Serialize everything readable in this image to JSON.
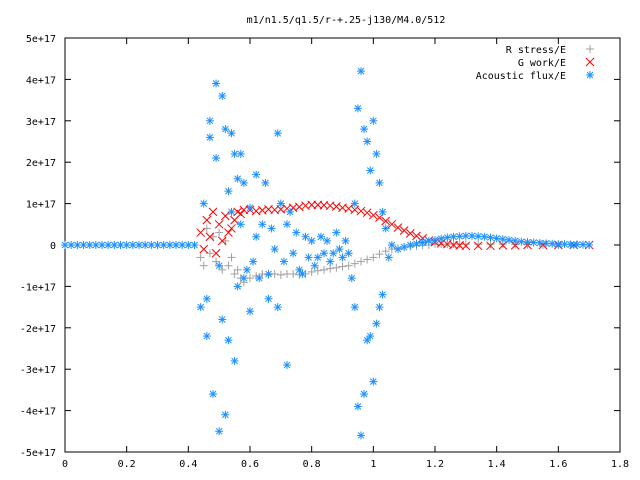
{
  "chart_data": {
    "type": "scatter",
    "title": "m1/n1.5/q1.5/r-+.25-j130/M4.0/512",
    "xlabel": "",
    "ylabel": "",
    "xlim": [
      0,
      1.8
    ],
    "ylim": [
      -5e+17,
      5e+17
    ],
    "x_ticks": [
      0,
      0.2,
      0.4,
      0.6,
      0.8,
      1,
      1.2,
      1.4,
      1.6,
      1.8
    ],
    "x_tick_labels": [
      "0",
      "0.2",
      "0.4",
      "0.6",
      "0.8",
      "1",
      "1.2",
      "1.4",
      "1.6",
      "1.8"
    ],
    "y_ticks": [
      -5e+17,
      -4e+17,
      -3e+17,
      -2e+17,
      -1e+17,
      0,
      1e+17,
      2e+17,
      3e+17,
      4e+17,
      5e+17
    ],
    "y_tick_labels": [
      "-5e+17",
      "-4e+17",
      "-3e+17",
      "-2e+17",
      "-1e+17",
      "0",
      "1e+17",
      "2e+17",
      "3e+17",
      "4e+17",
      "5e+17"
    ],
    "grid": false,
    "legend_position": "top-right",
    "series": [
      {
        "name": "R stress/E",
        "marker": "plus",
        "color": "#a0a0a0",
        "points": [
          [
            0.44,
            -3e+16
          ],
          [
            0.45,
            -5e+16
          ],
          [
            0.46,
            4e+16
          ],
          [
            0.47,
            -2e+16
          ],
          [
            0.48,
            2e+16
          ],
          [
            0.49,
            -4e+16
          ],
          [
            0.5,
            3e+16
          ],
          [
            0.51,
            -6e+16
          ],
          [
            0.52,
            1e+16
          ],
          [
            0.53,
            -5e+16
          ],
          [
            0.54,
            -3e+16
          ],
          [
            0.55,
            -7e+16
          ],
          [
            0.56,
            -6e+16
          ],
          [
            0.57,
            -8e+16
          ],
          [
            0.58,
            -9e+16
          ],
          [
            0.6,
            -8e+16
          ],
          [
            0.62,
            -7.5e+16
          ],
          [
            0.64,
            -7e+16
          ],
          [
            0.66,
            -7.2e+16
          ],
          [
            0.68,
            -7e+16
          ],
          [
            0.7,
            -7.2e+16
          ],
          [
            0.72,
            -7e+16
          ],
          [
            0.74,
            -7e+16
          ],
          [
            0.76,
            -7.2e+16
          ],
          [
            0.78,
            -7e+16
          ],
          [
            0.8,
            -6.5e+16
          ],
          [
            0.82,
            -6.2e+16
          ],
          [
            0.84,
            -6e+16
          ],
          [
            0.86,
            -5.7e+16
          ],
          [
            0.88,
            -5.5e+16
          ],
          [
            0.9,
            -5.2e+16
          ],
          [
            0.92,
            -5e+16
          ],
          [
            0.94,
            -4.5e+16
          ],
          [
            0.96,
            -4e+16
          ],
          [
            0.98,
            -3.5e+16
          ],
          [
            1.0,
            -3e+16
          ],
          [
            1.02,
            -2.2e+16
          ],
          [
            1.04,
            -1.5e+16
          ],
          [
            1.06,
            -1e+16
          ],
          [
            1.08,
            -8000000000000000.0
          ],
          [
            1.1,
            -5000000000000000.0
          ],
          [
            1.12,
            -4000000000000000.0
          ],
          [
            1.14,
            -2000000000000000.0
          ],
          [
            1.16,
            -1000000000000000.0
          ],
          [
            1.18,
            0.0
          ],
          [
            1.2,
            2000000000000000.0
          ],
          [
            1.22,
            2000000000000000.0
          ],
          [
            1.24,
            2000000000000000.0
          ],
          [
            1.26,
            2000000000000000.0
          ],
          [
            1.28,
            2000000000000000.0
          ],
          [
            1.3,
            2000000000000000.0
          ],
          [
            1.34,
            2000000000000000.0
          ],
          [
            1.38,
            2000000000000000.0
          ],
          [
            1.42,
            2000000000000000.0
          ],
          [
            1.46,
            1000000000000000.0
          ],
          [
            1.5,
            1000000000000000.0
          ],
          [
            1.55,
            0.0
          ],
          [
            1.6,
            0.0
          ],
          [
            1.65,
            0.0
          ],
          [
            1.7,
            0.0
          ]
        ]
      },
      {
        "name": "G work/E",
        "marker": "cross",
        "color": "#ff0000",
        "points": [
          [
            0.44,
            3e+16
          ],
          [
            0.45,
            -1e+16
          ],
          [
            0.46,
            6e+16
          ],
          [
            0.47,
            2e+16
          ],
          [
            0.48,
            8e+16
          ],
          [
            0.49,
            -2e+16
          ],
          [
            0.5,
            5e+16
          ],
          [
            0.51,
            1e+16
          ],
          [
            0.52,
            7e+16
          ],
          [
            0.53,
            3e+16
          ],
          [
            0.54,
            4e+16
          ],
          [
            0.55,
            6e+16
          ],
          [
            0.56,
            8e+16
          ],
          [
            0.57,
            7.5e+16
          ],
          [
            0.58,
            8.5e+16
          ],
          [
            0.6,
            8.5e+16
          ],
          [
            0.62,
            8.2e+16
          ],
          [
            0.64,
            8.4e+16
          ],
          [
            0.66,
            8.6e+16
          ],
          [
            0.68,
            8.5e+16
          ],
          [
            0.7,
            8.6e+16
          ],
          [
            0.72,
            8.8e+16
          ],
          [
            0.74,
            9e+16
          ],
          [
            0.76,
            9.2e+16
          ],
          [
            0.78,
            9.5e+16
          ],
          [
            0.8,
            9.7e+16
          ],
          [
            0.82,
            9.7e+16
          ],
          [
            0.84,
            9.6e+16
          ],
          [
            0.86,
            9.5e+16
          ],
          [
            0.88,
            9.3e+16
          ],
          [
            0.9,
            9e+16
          ],
          [
            0.92,
            8.8e+16
          ],
          [
            0.94,
            8.5e+16
          ],
          [
            0.96,
            8.2e+16
          ],
          [
            0.98,
            7.8e+16
          ],
          [
            1.0,
            7.2e+16
          ],
          [
            1.02,
            6.6e+16
          ],
          [
            1.04,
            5.8e+16
          ],
          [
            1.06,
            5e+16
          ],
          [
            1.08,
            4.2e+16
          ],
          [
            1.1,
            3.5e+16
          ],
          [
            1.12,
            2.8e+16
          ],
          [
            1.14,
            2.2e+16
          ],
          [
            1.16,
            1.6e+16
          ],
          [
            1.18,
            1.1e+16
          ],
          [
            1.2,
            7000000000000000.0
          ],
          [
            1.22,
            4000000000000000.0
          ],
          [
            1.24,
            2000000000000000.0
          ],
          [
            1.26,
            0.0
          ],
          [
            1.28,
            -1000000000000000.0
          ],
          [
            1.3,
            -2000000000000000.0
          ],
          [
            1.34,
            -2000000000000000.0
          ],
          [
            1.38,
            -2000000000000000.0
          ],
          [
            1.42,
            -1000000000000000.0
          ],
          [
            1.46,
            -1000000000000000.0
          ],
          [
            1.5,
            0.0
          ],
          [
            1.55,
            0.0
          ],
          [
            1.6,
            0.0
          ],
          [
            1.65,
            0.0
          ],
          [
            1.7,
            0.0
          ]
        ]
      },
      {
        "name": "Acoustic flux/E",
        "marker": "star",
        "color": "#1e90ff",
        "points": [
          [
            0.0,
            0.0
          ],
          [
            0.02,
            0.0
          ],
          [
            0.04,
            0.0
          ],
          [
            0.06,
            0.0
          ],
          [
            0.08,
            0.0
          ],
          [
            0.1,
            0.0
          ],
          [
            0.12,
            0.0
          ],
          [
            0.14,
            0.0
          ],
          [
            0.16,
            0.0
          ],
          [
            0.18,
            0.0
          ],
          [
            0.2,
            0.0
          ],
          [
            0.22,
            0.0
          ],
          [
            0.24,
            0.0
          ],
          [
            0.26,
            0.0
          ],
          [
            0.28,
            0.0
          ],
          [
            0.3,
            0.0
          ],
          [
            0.32,
            0.0
          ],
          [
            0.34,
            0.0
          ],
          [
            0.36,
            0.0
          ],
          [
            0.38,
            0.0
          ],
          [
            0.4,
            0.0
          ],
          [
            0.42,
            0.0
          ],
          [
            0.44,
            -1.5e+17
          ],
          [
            0.45,
            1e+17
          ],
          [
            0.46,
            -1.3e+17
          ],
          [
            0.46,
            -2.2e+17
          ],
          [
            0.47,
            2.6e+17
          ],
          [
            0.47,
            3e+17
          ],
          [
            0.48,
            -3.6e+17
          ],
          [
            0.49,
            3.9e+17
          ],
          [
            0.49,
            2.1e+17
          ],
          [
            0.5,
            -5e+16
          ],
          [
            0.5,
            -4.5e+17
          ],
          [
            0.51,
            3.6e+17
          ],
          [
            0.51,
            -1.8e+17
          ],
          [
            0.52,
            2.8e+17
          ],
          [
            0.52,
            -4.1e+17
          ],
          [
            0.53,
            1.3e+17
          ],
          [
            0.53,
            -2.3e+17
          ],
          [
            0.54,
            2.7e+17
          ],
          [
            0.54,
            8e+16
          ],
          [
            0.55,
            2.2e+17
          ],
          [
            0.55,
            -2.8e+17
          ],
          [
            0.56,
            1.6e+17
          ],
          [
            0.56,
            -1e+17
          ],
          [
            0.57,
            2.2e+17
          ],
          [
            0.57,
            5e+16
          ],
          [
            0.58,
            1.5e+17
          ],
          [
            0.58,
            -8e+16
          ],
          [
            0.59,
            -6e+16
          ],
          [
            0.6,
            9e+16
          ],
          [
            0.6,
            -1.6e+17
          ],
          [
            0.61,
            -4e+16
          ],
          [
            0.62,
            1.7e+17
          ],
          [
            0.62,
            2e+16
          ],
          [
            0.63,
            -8e+16
          ],
          [
            0.64,
            5e+16
          ],
          [
            0.65,
            1.5e+17
          ],
          [
            0.66,
            -1.3e+17
          ],
          [
            0.66,
            -7e+16
          ],
          [
            0.67,
            4e+16
          ],
          [
            0.68,
            -1e+16
          ],
          [
            0.69,
            2.7e+17
          ],
          [
            0.69,
            -1.5e+17
          ],
          [
            0.7,
            1e+17
          ],
          [
            0.71,
            -4e+16
          ],
          [
            0.72,
            5e+16
          ],
          [
            0.72,
            -2.9e+17
          ],
          [
            0.73,
            8e+16
          ],
          [
            0.74,
            -2e+16
          ],
          [
            0.75,
            3e+16
          ],
          [
            0.76,
            -6e+16
          ],
          [
            0.77,
            -7e+16
          ],
          [
            0.78,
            2e+16
          ],
          [
            0.79,
            -3e+16
          ],
          [
            0.8,
            1e+16
          ],
          [
            0.81,
            -5e+16
          ],
          [
            0.82,
            -3e+16
          ],
          [
            0.83,
            2e+16
          ],
          [
            0.84,
            -2e+16
          ],
          [
            0.85,
            1e+16
          ],
          [
            0.86,
            -4e+16
          ],
          [
            0.87,
            -2e+16
          ],
          [
            0.88,
            3e+16
          ],
          [
            0.89,
            -1e+16
          ],
          [
            0.9,
            -3e+16
          ],
          [
            0.91,
            1e+16
          ],
          [
            0.92,
            -2e+16
          ],
          [
            0.93,
            -8e+16
          ],
          [
            0.94,
            1e+17
          ],
          [
            0.94,
            -1.5e+17
          ],
          [
            0.95,
            3.3e+17
          ],
          [
            0.95,
            -3.9e+17
          ],
          [
            0.96,
            4.2e+17
          ],
          [
            0.96,
            -4.6e+17
          ],
          [
            0.97,
            2.8e+17
          ],
          [
            0.97,
            -3.6e+17
          ],
          [
            0.98,
            2.5e+17
          ],
          [
            0.98,
            -2.3e+17
          ],
          [
            0.99,
            1.8e+17
          ],
          [
            0.99,
            -2.2e+17
          ],
          [
            1.0,
            3e+17
          ],
          [
            1.0,
            -3.3e+17
          ],
          [
            1.01,
            2.2e+17
          ],
          [
            1.01,
            -1.9e+17
          ],
          [
            1.02,
            1.5e+17
          ],
          [
            1.02,
            -1.5e+17
          ],
          [
            1.03,
            8e+16
          ],
          [
            1.03,
            -1.2e+17
          ],
          [
            1.04,
            4e+16
          ],
          [
            1.05,
            -3e+16
          ],
          [
            1.06,
            0.0
          ],
          [
            1.08,
            -1e+16
          ],
          [
            1.1,
            -5000000000000000.0
          ],
          [
            1.12,
            0.0
          ],
          [
            1.14,
            3000000000000000.0
          ],
          [
            1.16,
            6000000000000000.0
          ],
          [
            1.18,
            1e+16
          ],
          [
            1.2,
            1.2e+16
          ],
          [
            1.22,
            1.5e+16
          ],
          [
            1.24,
            1.8e+16
          ],
          [
            1.26,
            2e+16
          ],
          [
            1.28,
            2.1e+16
          ],
          [
            1.3,
            2.2e+16
          ],
          [
            1.32,
            2.2e+16
          ],
          [
            1.34,
            2.1e+16
          ],
          [
            1.36,
            2e+16
          ],
          [
            1.38,
            1.8e+16
          ],
          [
            1.4,
            1.6e+16
          ],
          [
            1.42,
            1.4e+16
          ],
          [
            1.44,
            1.2e+16
          ],
          [
            1.46,
            1e+16
          ],
          [
            1.48,
            8000000000000000.0
          ],
          [
            1.5,
            7000000000000000.0
          ],
          [
            1.52,
            6000000000000000.0
          ],
          [
            1.54,
            5000000000000000.0
          ],
          [
            1.56,
            4000000000000000.0
          ],
          [
            1.58,
            3000000000000000.0
          ],
          [
            1.6,
            2000000000000000.0
          ],
          [
            1.62,
            2000000000000000.0
          ],
          [
            1.64,
            1000000000000000.0
          ],
          [
            1.66,
            1000000000000000.0
          ],
          [
            1.68,
            1000000000000000.0
          ],
          [
            1.7,
            0.0
          ]
        ]
      }
    ]
  }
}
